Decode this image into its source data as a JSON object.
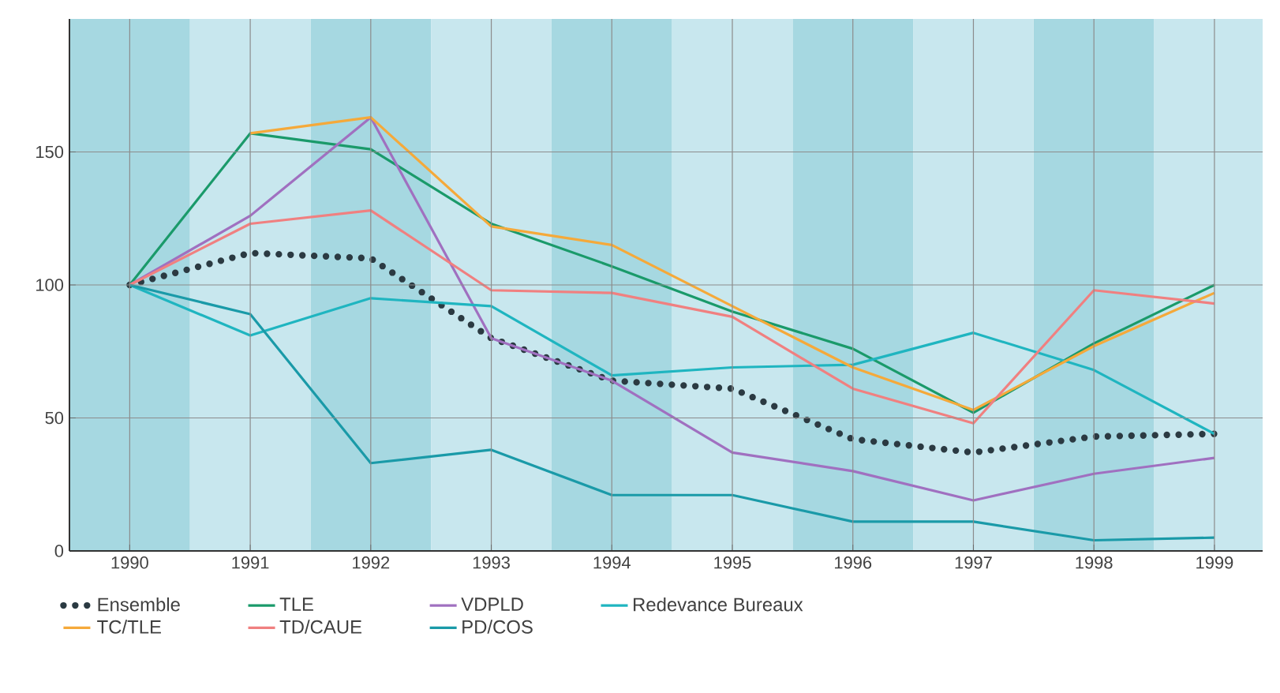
{
  "chart_data": {
    "type": "line",
    "x": [
      1990,
      1991,
      1992,
      1993,
      1994,
      1995,
      1996,
      1997,
      1998,
      1999
    ],
    "xlim": [
      1989.5,
      1999.4
    ],
    "ylim": [
      0,
      200
    ],
    "xticks": [
      1990,
      1991,
      1992,
      1993,
      1994,
      1995,
      1996,
      1997,
      1998,
      1999
    ],
    "yticks": [
      0,
      50,
      100,
      150
    ],
    "grid": true,
    "legend": "bottom",
    "marker": "none",
    "bands": [
      {
        "axis": "x",
        "from": 1989.5,
        "to": 1990.5,
        "color": "#a6d8e1"
      },
      {
        "axis": "x",
        "from": 1991.5,
        "to": 1992.5,
        "color": "#a6d8e1"
      },
      {
        "axis": "x",
        "from": 1993.5,
        "to": 1994.5,
        "color": "#a6d8e1"
      },
      {
        "axis": "x",
        "from": 1995.5,
        "to": 1996.5,
        "color": "#a6d8e1"
      },
      {
        "axis": "x",
        "from": 1997.5,
        "to": 1998.5,
        "color": "#a6d8e1"
      },
      {
        "axis": "x",
        "from": 1990.5,
        "to": 1991.5,
        "color": "#c8e7ee"
      },
      {
        "axis": "x",
        "from": 1992.5,
        "to": 1993.5,
        "color": "#c8e7ee"
      },
      {
        "axis": "x",
        "from": 1994.5,
        "to": 1995.5,
        "color": "#c8e7ee"
      },
      {
        "axis": "x",
        "from": 1996.5,
        "to": 1997.5,
        "color": "#c8e7ee"
      },
      {
        "axis": "x",
        "from": 1998.5,
        "to": 1999.4,
        "color": "#c8e7ee"
      }
    ],
    "series": [
      {
        "name": "Ensemble",
        "color": "#2b3a42",
        "line_style": "dotted",
        "values": [
          100,
          112,
          110,
          80,
          64,
          61,
          42,
          37,
          43,
          44
        ]
      },
      {
        "name": "TLE",
        "color": "#1a9a6a",
        "values": [
          100,
          157,
          151,
          123,
          107,
          90,
          76,
          52,
          78,
          100
        ]
      },
      {
        "name": "VDPLD",
        "color": "#a070c0",
        "values": [
          100,
          126,
          163,
          80,
          64,
          37,
          30,
          19,
          29,
          35
        ]
      },
      {
        "name": "Redevance Bureaux",
        "color": "#1fb5c0",
        "values": [
          100,
          81,
          95,
          92,
          66,
          69,
          70,
          82,
          68,
          44
        ]
      },
      {
        "name": "TC/TLE",
        "color": "#f5a93a",
        "values": [
          null,
          157,
          163,
          122,
          115,
          92,
          69,
          53,
          77,
          97
        ]
      },
      {
        "name": "TD/CAUE",
        "color": "#f08080",
        "values": [
          100,
          123,
          128,
          98,
          97,
          88,
          61,
          48,
          98,
          93
        ]
      },
      {
        "name": "PD/COS",
        "color": "#1a9aa8",
        "values": [
          100,
          89,
          33,
          38,
          21,
          21,
          11,
          11,
          4,
          5
        ]
      }
    ]
  }
}
